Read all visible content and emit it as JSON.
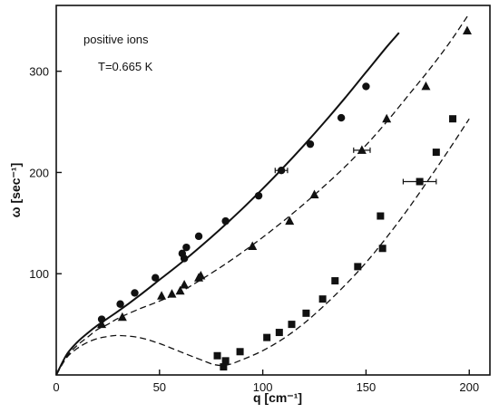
{
  "chart_data": {
    "type": "scatter",
    "annotations": [
      "positive ions",
      "T=0.665 K"
    ],
    "xlabel": "q [cm⁻¹]",
    "ylabel": "ω [sec⁻¹]",
    "xlim": [
      0,
      210
    ],
    "ylim": [
      0,
      365
    ],
    "x_ticks": [
      0,
      50,
      100,
      150,
      200
    ],
    "y_ticks": [
      100,
      200,
      300
    ],
    "grid": false,
    "legend": "none",
    "series": [
      {
        "marker": "circle",
        "line": "solid",
        "points": [
          [
            22,
            55
          ],
          [
            31,
            70
          ],
          [
            38,
            81
          ],
          [
            48,
            96
          ],
          [
            61,
            120
          ],
          [
            62,
            115
          ],
          [
            63,
            126
          ],
          [
            69,
            137
          ],
          [
            82,
            152
          ],
          [
            98,
            177
          ],
          [
            109,
            202
          ],
          [
            123,
            228
          ],
          [
            138,
            254
          ],
          [
            150,
            285
          ]
        ],
        "curve": [
          [
            0,
            0
          ],
          [
            5,
            20
          ],
          [
            10,
            32
          ],
          [
            15,
            41
          ],
          [
            20,
            49
          ],
          [
            30,
            63
          ],
          [
            40,
            78
          ],
          [
            50,
            94
          ],
          [
            60,
            110
          ],
          [
            70,
            127
          ],
          [
            80,
            145
          ],
          [
            90,
            164
          ],
          [
            100,
            184
          ],
          [
            110,
            205
          ],
          [
            120,
            227
          ],
          [
            130,
            250
          ],
          [
            140,
            274
          ],
          [
            150,
            299
          ],
          [
            160,
            324
          ],
          [
            166,
            338
          ]
        ],
        "x_error_bars": [
          {
            "x": 109,
            "y": 202,
            "dx": 3
          }
        ]
      },
      {
        "marker": "triangle",
        "line": "dashed",
        "points": [
          [
            22,
            50
          ],
          [
            32,
            57
          ],
          [
            51,
            78
          ],
          [
            56,
            80
          ],
          [
            60,
            83
          ],
          [
            62,
            89
          ],
          [
            69,
            96
          ],
          [
            70,
            98
          ],
          [
            95,
            127
          ],
          [
            113,
            152
          ],
          [
            125,
            178
          ],
          [
            148,
            222
          ],
          [
            160,
            253
          ],
          [
            179,
            285
          ],
          [
            199,
            340
          ]
        ],
        "curve": [
          [
            0,
            0
          ],
          [
            5,
            18
          ],
          [
            10,
            29
          ],
          [
            15,
            37
          ],
          [
            20,
            45
          ],
          [
            25,
            50
          ],
          [
            30,
            56
          ],
          [
            40,
            65
          ],
          [
            50,
            73
          ],
          [
            60,
            82
          ],
          [
            70,
            94
          ],
          [
            80,
            107
          ],
          [
            90,
            121
          ],
          [
            100,
            136
          ],
          [
            110,
            152
          ],
          [
            120,
            169
          ],
          [
            130,
            187
          ],
          [
            140,
            206
          ],
          [
            150,
            227
          ],
          [
            160,
            250
          ],
          [
            170,
            275
          ],
          [
            180,
            300
          ],
          [
            190,
            327
          ],
          [
            200,
            357
          ]
        ],
        "x_error_bars": [
          {
            "x": 148,
            "y": 222,
            "dx": 4
          }
        ]
      },
      {
        "marker": "square",
        "line": "dashed",
        "points": [
          [
            78,
            19
          ],
          [
            81,
            8
          ],
          [
            82,
            14
          ],
          [
            89,
            23
          ],
          [
            102,
            37
          ],
          [
            108,
            42
          ],
          [
            114,
            50
          ],
          [
            121,
            61
          ],
          [
            129,
            75
          ],
          [
            135,
            93
          ],
          [
            146,
            107
          ],
          [
            157,
            157
          ],
          [
            158,
            125
          ],
          [
            176,
            191
          ],
          [
            184,
            220
          ],
          [
            192,
            253
          ]
        ],
        "curve": [
          [
            0,
            0
          ],
          [
            5,
            17
          ],
          [
            10,
            26
          ],
          [
            15,
            32
          ],
          [
            20,
            36
          ],
          [
            25,
            38
          ],
          [
            30,
            39
          ],
          [
            40,
            37
          ],
          [
            50,
            31
          ],
          [
            60,
            23
          ],
          [
            70,
            15
          ],
          [
            77,
            10
          ],
          [
            83,
            10
          ],
          [
            90,
            15
          ],
          [
            100,
            24
          ],
          [
            110,
            36
          ],
          [
            120,
            51
          ],
          [
            130,
            69
          ],
          [
            140,
            89
          ],
          [
            150,
            111
          ],
          [
            160,
            136
          ],
          [
            170,
            163
          ],
          [
            180,
            192
          ],
          [
            190,
            222
          ],
          [
            200,
            253
          ]
        ],
        "x_error_bars": [
          {
            "x": 176,
            "y": 191,
            "dx": 8
          }
        ]
      }
    ]
  }
}
